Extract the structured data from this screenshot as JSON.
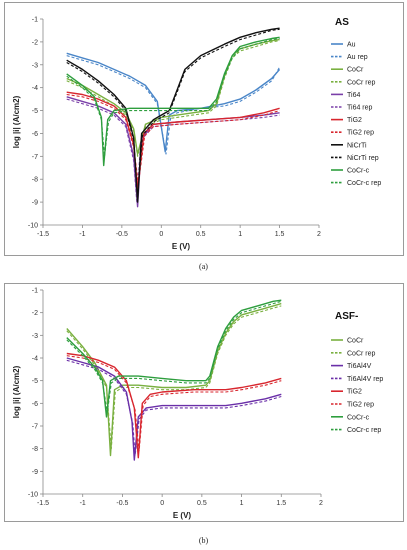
{
  "chart_data": [
    {
      "type": "line",
      "panel_title": "AS",
      "caption": "(a)",
      "xlabel": "E (V)",
      "ylabel": "log |i| (A/cm2)",
      "xlim": [
        -1.5,
        2
      ],
      "ylim": [
        -10,
        -1
      ],
      "xticks": [
        -1.5,
        -1,
        -0.5,
        0,
        0.5,
        1,
        1.5,
        2
      ],
      "yticks": [
        -10,
        -9,
        -8,
        -7,
        -6,
        -5,
        -4,
        -3,
        -2,
        -1
      ],
      "grid": false,
      "legend_position": "right",
      "series": [
        {
          "name": "Au",
          "color": "#4a86c8",
          "dash": false,
          "x": [
            -1.2,
            -1.0,
            -0.8,
            -0.6,
            -0.4,
            -0.2,
            -0.05,
            0.05,
            0.1,
            0.2,
            0.5,
            0.8,
            1.0,
            1.2,
            1.4,
            1.5
          ],
          "y": [
            -2.5,
            -2.7,
            -2.9,
            -3.2,
            -3.5,
            -3.9,
            -4.6,
            -6.8,
            -5.2,
            -5.0,
            -4.9,
            -4.7,
            -4.5,
            -4.1,
            -3.6,
            -3.2
          ]
        },
        {
          "name": "Au rep",
          "color": "#4a86c8",
          "dash": true,
          "x": [
            -1.2,
            -1.0,
            -0.8,
            -0.6,
            -0.4,
            -0.2,
            -0.05,
            0.06,
            0.12,
            0.2,
            0.5,
            0.8,
            1.0,
            1.2,
            1.4,
            1.5
          ],
          "y": [
            -2.6,
            -2.8,
            -3.0,
            -3.3,
            -3.6,
            -4.0,
            -4.7,
            -6.9,
            -5.3,
            -5.1,
            -4.9,
            -4.8,
            -4.6,
            -4.2,
            -3.7,
            -3.1
          ]
        },
        {
          "name": "CoCr",
          "color": "#7ab040",
          "dash": false,
          "x": [
            -1.2,
            -1.0,
            -0.8,
            -0.6,
            -0.45,
            -0.35,
            -0.3,
            -0.2,
            0.0,
            0.2,
            0.4,
            0.6,
            0.7,
            0.8,
            0.9,
            1.0,
            1.2,
            1.4,
            1.5
          ],
          "y": [
            -3.6,
            -3.9,
            -4.3,
            -4.7,
            -5.1,
            -5.8,
            -6.9,
            -5.6,
            -5.3,
            -5.2,
            -5.1,
            -5.0,
            -4.7,
            -3.5,
            -2.6,
            -2.3,
            -2.1,
            -1.95,
            -1.9
          ]
        },
        {
          "name": "CoCr rep",
          "color": "#7ab040",
          "dash": true,
          "x": [
            -1.2,
            -1.0,
            -0.8,
            -0.6,
            -0.45,
            -0.35,
            -0.3,
            -0.2,
            0.0,
            0.2,
            0.4,
            0.6,
            0.7,
            0.8,
            0.9,
            1.0,
            1.2,
            1.4,
            1.5
          ],
          "y": [
            -3.7,
            -4.0,
            -4.4,
            -4.8,
            -5.2,
            -5.9,
            -7.0,
            -5.7,
            -5.4,
            -5.3,
            -5.2,
            -5.1,
            -4.8,
            -3.6,
            -2.7,
            -2.4,
            -2.2,
            -2.0,
            -1.95
          ]
        },
        {
          "name": "Ti64",
          "color": "#7a3fa8",
          "dash": false,
          "x": [
            -1.2,
            -1.0,
            -0.8,
            -0.6,
            -0.45,
            -0.35,
            -0.3,
            -0.25,
            -0.1,
            0.2,
            0.6,
            1.0,
            1.3,
            1.5
          ],
          "y": [
            -4.4,
            -4.6,
            -4.8,
            -5.1,
            -5.6,
            -7.0,
            -9.2,
            -6.2,
            -5.6,
            -5.5,
            -5.4,
            -5.3,
            -5.2,
            -5.1
          ]
        },
        {
          "name": "Ti64 rep",
          "color": "#7a3fa8",
          "dash": true,
          "x": [
            -1.2,
            -1.0,
            -0.8,
            -0.6,
            -0.45,
            -0.35,
            -0.31,
            -0.26,
            -0.1,
            0.2,
            0.6,
            1.0,
            1.3,
            1.5
          ],
          "y": [
            -4.5,
            -4.7,
            -4.9,
            -5.2,
            -5.7,
            -7.2,
            -9.0,
            -6.3,
            -5.7,
            -5.6,
            -5.5,
            -5.4,
            -5.3,
            -5.2
          ]
        },
        {
          "name": "TiG2",
          "color": "#d8262e",
          "dash": false,
          "x": [
            -1.2,
            -1.0,
            -0.8,
            -0.6,
            -0.45,
            -0.35,
            -0.3,
            -0.22,
            -0.1,
            0.2,
            0.6,
            1.0,
            1.3,
            1.5
          ],
          "y": [
            -4.2,
            -4.3,
            -4.5,
            -4.8,
            -5.3,
            -6.5,
            -8.4,
            -6.0,
            -5.6,
            -5.5,
            -5.4,
            -5.3,
            -5.1,
            -4.9
          ]
        },
        {
          "name": "TiG2 rep",
          "color": "#d8262e",
          "dash": true,
          "x": [
            -1.2,
            -1.0,
            -0.8,
            -0.6,
            -0.45,
            -0.35,
            -0.29,
            -0.21,
            -0.1,
            0.2,
            0.6,
            1.0,
            1.3,
            1.5
          ],
          "y": [
            -4.3,
            -4.4,
            -4.6,
            -4.9,
            -5.4,
            -6.6,
            -8.2,
            -6.1,
            -5.7,
            -5.6,
            -5.5,
            -5.4,
            -5.2,
            -5.0
          ]
        },
        {
          "name": "NiCrTi",
          "color": "#111111",
          "dash": false,
          "x": [
            -1.2,
            -1.0,
            -0.8,
            -0.6,
            -0.45,
            -0.35,
            -0.3,
            -0.25,
            -0.1,
            0.0,
            0.1,
            0.2,
            0.3,
            0.5,
            0.8,
            1.0,
            1.2,
            1.4,
            1.5
          ],
          "y": [
            -2.8,
            -3.2,
            -3.7,
            -4.3,
            -4.9,
            -6.2,
            -9.0,
            -6.0,
            -5.4,
            -5.2,
            -5.0,
            -4.1,
            -3.2,
            -2.6,
            -2.1,
            -1.8,
            -1.6,
            -1.45,
            -1.4
          ]
        },
        {
          "name": "NiCrTi rep",
          "color": "#111111",
          "dash": true,
          "x": [
            -1.2,
            -1.0,
            -0.8,
            -0.6,
            -0.45,
            -0.35,
            -0.3,
            -0.24,
            -0.1,
            0.0,
            0.1,
            0.2,
            0.3,
            0.5,
            0.8,
            1.0,
            1.2,
            1.4,
            1.5
          ],
          "y": [
            -2.9,
            -3.3,
            -3.8,
            -4.4,
            -5.0,
            -6.3,
            -8.8,
            -6.1,
            -5.5,
            -5.3,
            -5.1,
            -4.2,
            -3.3,
            -2.7,
            -2.2,
            -1.9,
            -1.7,
            -1.5,
            -1.45
          ]
        },
        {
          "name": "CoCr-c",
          "color": "#2e9e3e",
          "dash": false,
          "x": [
            -1.2,
            -1.0,
            -0.85,
            -0.76,
            -0.73,
            -0.68,
            -0.6,
            -0.4,
            -0.2,
            0.0,
            0.3,
            0.6,
            0.7,
            0.8,
            0.9,
            1.0,
            1.2,
            1.4,
            1.5
          ],
          "y": [
            -3.4,
            -3.9,
            -4.4,
            -5.3,
            -7.4,
            -5.4,
            -5.0,
            -4.9,
            -4.9,
            -4.9,
            -4.9,
            -4.9,
            -4.5,
            -3.4,
            -2.6,
            -2.2,
            -2.0,
            -1.85,
            -1.8
          ]
        },
        {
          "name": "CoCr-c rep",
          "color": "#2e9e3e",
          "dash": true,
          "x": [
            -1.2,
            -1.0,
            -0.85,
            -0.76,
            -0.72,
            -0.67,
            -0.6,
            -0.4,
            -0.2,
            0.0,
            0.3,
            0.6,
            0.7,
            0.8,
            0.9,
            1.0,
            1.2,
            1.4,
            1.5
          ],
          "y": [
            -3.5,
            -4.0,
            -4.5,
            -5.4,
            -7.0,
            -5.5,
            -5.1,
            -5.0,
            -5.0,
            -5.0,
            -5.0,
            -5.0,
            -4.6,
            -3.5,
            -2.7,
            -2.3,
            -2.1,
            -1.9,
            -1.85
          ]
        }
      ]
    },
    {
      "type": "line",
      "panel_title": "ASF-",
      "caption": "(b)",
      "xlabel": "E (V)",
      "ylabel": "log |i| (A/cm2)",
      "xlim": [
        -1.5,
        2
      ],
      "ylim": [
        -10,
        -1
      ],
      "xticks": [
        -1.5,
        -1,
        -0.5,
        0,
        0.5,
        1,
        1.5,
        2
      ],
      "yticks": [
        -10,
        -9,
        -8,
        -7,
        -6,
        -5,
        -4,
        -3,
        -2,
        -1
      ],
      "grid": false,
      "legend_position": "right",
      "series": [
        {
          "name": "CoCr",
          "color": "#7ab040",
          "dash": false,
          "x": [
            -1.2,
            -1.0,
            -0.85,
            -0.7,
            -0.65,
            -0.6,
            -0.5,
            -0.3,
            0.0,
            0.3,
            0.55,
            0.6,
            0.7,
            0.8,
            0.9,
            1.0,
            1.2,
            1.4,
            1.5
          ],
          "y": [
            -2.7,
            -3.5,
            -4.2,
            -5.2,
            -8.3,
            -5.4,
            -5.2,
            -5.2,
            -5.3,
            -5.3,
            -5.2,
            -5.0,
            -3.7,
            -2.9,
            -2.4,
            -2.1,
            -1.9,
            -1.7,
            -1.6
          ]
        },
        {
          "name": "CoCr rep",
          "color": "#7ab040",
          "dash": true,
          "x": [
            -1.2,
            -1.0,
            -0.85,
            -0.7,
            -0.64,
            -0.59,
            -0.5,
            -0.3,
            0.0,
            0.3,
            0.55,
            0.6,
            0.7,
            0.8,
            0.9,
            1.0,
            1.2,
            1.4,
            1.5
          ],
          "y": [
            -2.8,
            -3.6,
            -4.3,
            -5.3,
            -8.0,
            -5.5,
            -5.3,
            -5.3,
            -5.4,
            -5.4,
            -5.3,
            -5.1,
            -3.8,
            -3.0,
            -2.5,
            -2.2,
            -2.0,
            -1.8,
            -1.7
          ]
        },
        {
          "name": "Ti6Al4V",
          "color": "#6a2fa8",
          "dash": false,
          "x": [
            -1.2,
            -1.0,
            -0.8,
            -0.6,
            -0.45,
            -0.38,
            -0.35,
            -0.3,
            -0.2,
            0.0,
            0.4,
            0.8,
            1.0,
            1.3,
            1.5
          ],
          "y": [
            -4.0,
            -4.2,
            -4.4,
            -4.8,
            -5.5,
            -6.8,
            -8.5,
            -6.6,
            -6.2,
            -6.1,
            -6.1,
            -6.1,
            -6.0,
            -5.8,
            -5.6
          ]
        },
        {
          "name": "Ti6Al4V rep",
          "color": "#6a2fa8",
          "dash": true,
          "x": [
            -1.2,
            -1.0,
            -0.8,
            -0.6,
            -0.45,
            -0.37,
            -0.34,
            -0.29,
            -0.2,
            0.0,
            0.4,
            0.8,
            1.0,
            1.3,
            1.5
          ],
          "y": [
            -4.1,
            -4.3,
            -4.5,
            -4.9,
            -5.6,
            -6.9,
            -8.3,
            -6.7,
            -6.3,
            -6.2,
            -6.2,
            -6.2,
            -6.1,
            -5.9,
            -5.7
          ]
        },
        {
          "name": "TiG2",
          "color": "#d8262e",
          "dash": false,
          "x": [
            -1.2,
            -1.0,
            -0.8,
            -0.6,
            -0.45,
            -0.35,
            -0.3,
            -0.25,
            -0.15,
            0.0,
            0.4,
            0.8,
            1.0,
            1.3,
            1.5
          ],
          "y": [
            -3.8,
            -3.9,
            -4.1,
            -4.4,
            -5.0,
            -6.2,
            -8.4,
            -6.0,
            -5.6,
            -5.5,
            -5.4,
            -5.4,
            -5.3,
            -5.1,
            -4.9
          ]
        },
        {
          "name": "TiG2 rep",
          "color": "#d8262e",
          "dash": true,
          "x": [
            -1.2,
            -1.0,
            -0.8,
            -0.6,
            -0.45,
            -0.34,
            -0.29,
            -0.24,
            -0.15,
            0.0,
            0.4,
            0.8,
            1.0,
            1.3,
            1.5
          ],
          "y": [
            -3.9,
            -4.0,
            -4.2,
            -4.5,
            -5.1,
            -6.3,
            -8.1,
            -6.1,
            -5.7,
            -5.6,
            -5.5,
            -5.5,
            -5.4,
            -5.2,
            -5.0
          ]
        },
        {
          "name": "CoCr-c",
          "color": "#2e9e3e",
          "dash": false,
          "x": [
            -1.2,
            -1.0,
            -0.85,
            -0.75,
            -0.7,
            -0.65,
            -0.55,
            -0.3,
            0.0,
            0.3,
            0.55,
            0.6,
            0.7,
            0.8,
            0.9,
            1.0,
            1.2,
            1.4,
            1.5
          ],
          "y": [
            -3.1,
            -3.8,
            -4.4,
            -5.0,
            -6.6,
            -5.0,
            -4.8,
            -4.8,
            -4.9,
            -5.0,
            -5.0,
            -4.8,
            -3.5,
            -2.7,
            -2.2,
            -1.9,
            -1.7,
            -1.5,
            -1.45
          ]
        },
        {
          "name": "CoCr-c rep",
          "color": "#2e9e3e",
          "dash": true,
          "x": [
            -1.2,
            -1.0,
            -0.85,
            -0.75,
            -0.69,
            -0.64,
            -0.55,
            -0.3,
            0.0,
            0.3,
            0.55,
            0.6,
            0.7,
            0.8,
            0.9,
            1.0,
            1.2,
            1.4,
            1.5
          ],
          "y": [
            -3.2,
            -3.9,
            -4.5,
            -5.1,
            -6.4,
            -5.1,
            -4.9,
            -4.9,
            -5.0,
            -5.1,
            -5.1,
            -4.9,
            -3.6,
            -2.8,
            -2.3,
            -2.0,
            -1.8,
            -1.6,
            -1.5
          ]
        }
      ]
    }
  ]
}
